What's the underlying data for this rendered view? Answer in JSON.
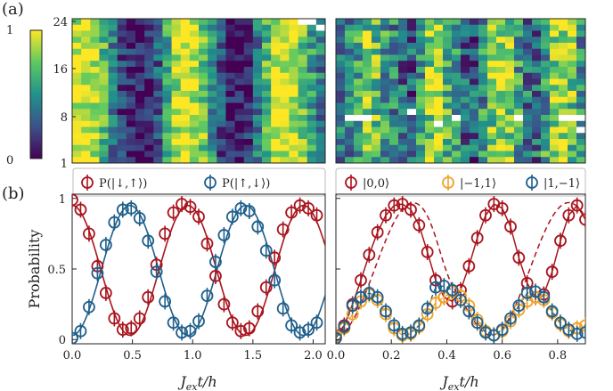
{
  "panel_labels": {
    "a": "(a)",
    "b": "(b)"
  },
  "colors": {
    "red": "#a8151e",
    "blue": "#1f5f8b",
    "orange": "#f0a227",
    "frame": "#222222",
    "legend_border": "#bbbbbb"
  },
  "colorbar": {
    "top_label": "1",
    "bottom_label": "0",
    "colormap": "viridis"
  },
  "chart_data": [
    {
      "type": "heatmap",
      "panel": "a-left",
      "rows": 24,
      "cols": 28,
      "ytick_labels": [
        "24",
        "16",
        "8",
        "1"
      ],
      "description_values": "yellow and dark-purple vertical bands alternating across columns (two-spin oscillation)",
      "band_profile": [
        0.95,
        0.95,
        0.9,
        0.7,
        0.4,
        0.2,
        0.1,
        0.05,
        0.1,
        0.3,
        0.6,
        0.85,
        0.95,
        0.9,
        0.75,
        0.5,
        0.25,
        0.1,
        0.05,
        0.15,
        0.4,
        0.7,
        0.9,
        0.95,
        0.9,
        0.75,
        0.55,
        0.4
      ]
    },
    {
      "type": "heatmap",
      "panel": "a-right",
      "rows": 24,
      "cols": 28,
      "band_profile": [
        0.35,
        0.45,
        0.6,
        0.75,
        0.7,
        0.55,
        0.45,
        0.35,
        0.3,
        0.55,
        0.8,
        0.9,
        0.7,
        0.5,
        0.35,
        0.3,
        0.5,
        0.75,
        0.9,
        0.75,
        0.55,
        0.4,
        0.35,
        0.55,
        0.8,
        0.9,
        0.75,
        0.5
      ]
    },
    {
      "type": "line",
      "panel": "b-left",
      "xlabel": "J_ex t/h",
      "ylabel": "Probability",
      "xlim": [
        0.0,
        2.1
      ],
      "ylim": [
        -0.03,
        1.03
      ],
      "xticks": [
        "0.0",
        "0.5",
        "1.0",
        "1.5",
        "2.0"
      ],
      "yticks": [
        "0",
        "0.5",
        "1"
      ],
      "legend": [
        "P(|↓,↑⟩)",
        "P(|↑,↓⟩)"
      ],
      "series": [
        {
          "name": "P(|↓,↑⟩)",
          "color": "red",
          "x": [
            0.0,
            0.07,
            0.14,
            0.21,
            0.28,
            0.35,
            0.42,
            0.49,
            0.56,
            0.63,
            0.7,
            0.77,
            0.84,
            0.91,
            0.98,
            1.05,
            1.12,
            1.19,
            1.26,
            1.33,
            1.4,
            1.47,
            1.54,
            1.61,
            1.68,
            1.75,
            1.82,
            1.89,
            1.96,
            2.03
          ],
          "values": [
            0.99,
            0.92,
            0.75,
            0.52,
            0.33,
            0.15,
            0.07,
            0.08,
            0.15,
            0.3,
            0.53,
            0.75,
            0.9,
            0.96,
            0.94,
            0.87,
            0.68,
            0.45,
            0.25,
            0.12,
            0.06,
            0.08,
            0.2,
            0.37,
            0.58,
            0.78,
            0.9,
            0.95,
            0.93,
            0.88
          ]
        },
        {
          "name": "P(|↑,↓⟩)",
          "color": "blue",
          "x": [
            0.0,
            0.07,
            0.14,
            0.21,
            0.28,
            0.35,
            0.42,
            0.49,
            0.56,
            0.63,
            0.7,
            0.77,
            0.84,
            0.91,
            0.98,
            1.05,
            1.12,
            1.19,
            1.26,
            1.33,
            1.4,
            1.47,
            1.54,
            1.61,
            1.68,
            1.75,
            1.82,
            1.89,
            1.96,
            2.03
          ],
          "values": [
            0.01,
            0.06,
            0.23,
            0.47,
            0.67,
            0.83,
            0.92,
            0.93,
            0.86,
            0.7,
            0.48,
            0.27,
            0.12,
            0.05,
            0.06,
            0.13,
            0.31,
            0.55,
            0.74,
            0.87,
            0.93,
            0.91,
            0.8,
            0.63,
            0.42,
            0.22,
            0.1,
            0.05,
            0.07,
            0.12
          ]
        }
      ],
      "fit_curves": [
        {
          "color": "red",
          "amplitude": 0.92,
          "offset": 0.03,
          "freq_period": 0.96,
          "phase": "cos"
        },
        {
          "color": "blue",
          "amplitude": 0.92,
          "offset": 0.03,
          "freq_period": 0.96,
          "phase": "sin2"
        }
      ]
    },
    {
      "type": "line",
      "panel": "b-right",
      "xlabel": "J_ex t/h",
      "xlim": [
        0.0,
        0.9
      ],
      "ylim": [
        -0.03,
        1.03
      ],
      "xticks": [
        "0.0",
        "0.2",
        "0.4",
        "0.6",
        "0.8"
      ],
      "legend": [
        "|0,0⟩",
        "|−1,1⟩",
        "|1,−1⟩"
      ],
      "series": [
        {
          "name": "|0,0⟩",
          "color": "red",
          "x": [
            0.0,
            0.03,
            0.06,
            0.09,
            0.12,
            0.15,
            0.18,
            0.21,
            0.24,
            0.27,
            0.3,
            0.33,
            0.36,
            0.39,
            0.42,
            0.45,
            0.48,
            0.51,
            0.54,
            0.57,
            0.6,
            0.63,
            0.66,
            0.69,
            0.72,
            0.75,
            0.78,
            0.81,
            0.84,
            0.87,
            0.9
          ],
          "values": [
            0.03,
            0.1,
            0.25,
            0.42,
            0.6,
            0.76,
            0.88,
            0.95,
            0.96,
            0.92,
            0.81,
            0.62,
            0.42,
            0.3,
            0.27,
            0.35,
            0.52,
            0.72,
            0.88,
            0.96,
            0.93,
            0.8,
            0.58,
            0.4,
            0.3,
            0.32,
            0.48,
            0.7,
            0.88,
            0.95,
            0.85
          ]
        },
        {
          "name": "|−1,1⟩",
          "color": "orange",
          "x": [
            0.0,
            0.03,
            0.06,
            0.09,
            0.12,
            0.15,
            0.18,
            0.21,
            0.24,
            0.27,
            0.3,
            0.33,
            0.36,
            0.39,
            0.42,
            0.45,
            0.48,
            0.51,
            0.54,
            0.57,
            0.6,
            0.63,
            0.66,
            0.69,
            0.72,
            0.75,
            0.78,
            0.81,
            0.84,
            0.87,
            0.9
          ],
          "values": [
            0.02,
            0.08,
            0.18,
            0.27,
            0.32,
            0.28,
            0.18,
            0.08,
            0.03,
            0.04,
            0.09,
            0.18,
            0.26,
            0.3,
            0.34,
            0.31,
            0.24,
            0.14,
            0.06,
            0.03,
            0.06,
            0.13,
            0.21,
            0.27,
            0.3,
            0.28,
            0.19,
            0.11,
            0.06,
            0.08,
            0.1
          ]
        },
        {
          "name": "|1,−1⟩",
          "color": "blue",
          "x": [
            0.0,
            0.03,
            0.06,
            0.09,
            0.12,
            0.15,
            0.18,
            0.21,
            0.24,
            0.27,
            0.3,
            0.33,
            0.36,
            0.39,
            0.42,
            0.45,
            0.48,
            0.51,
            0.54,
            0.57,
            0.6,
            0.63,
            0.66,
            0.69,
            0.72,
            0.75,
            0.78,
            0.81,
            0.84,
            0.87,
            0.9
          ],
          "values": [
            0.01,
            0.09,
            0.24,
            0.3,
            0.33,
            0.3,
            0.2,
            0.1,
            0.04,
            0.05,
            0.1,
            0.22,
            0.37,
            0.38,
            0.35,
            0.28,
            0.2,
            0.12,
            0.05,
            0.03,
            0.07,
            0.15,
            0.24,
            0.33,
            0.34,
            0.3,
            0.2,
            0.12,
            0.07,
            0.04,
            0.05
          ]
        }
      ]
    }
  ]
}
